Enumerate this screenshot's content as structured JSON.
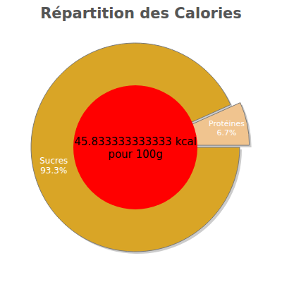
{
  "chart_data": {
    "type": "pie",
    "title": "Répartition des Calories",
    "categories": [
      "Sucres",
      "Protéines"
    ],
    "values": [
      93.3,
      6.7
    ],
    "value_labels": [
      "93.3%",
      "6.7%"
    ],
    "colors": [
      "#d9a526",
      "#f0c48f"
    ],
    "data_labels": true,
    "annotations": [
      "45.833333333333 kcal",
      "pour 100g"
    ]
  }
}
